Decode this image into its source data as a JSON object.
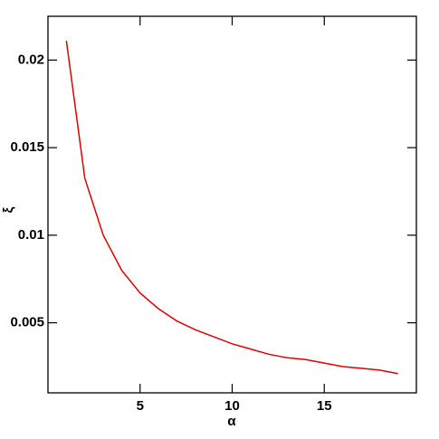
{
  "chart_data": {
    "type": "line",
    "x_label": "α",
    "y_label": "ξ",
    "x": [
      1,
      2,
      3,
      4,
      5,
      6,
      7,
      8,
      9,
      10,
      11,
      12,
      13,
      14,
      15,
      16,
      17,
      18,
      19
    ],
    "series": [
      {
        "color": "#e00000",
        "values": [
          0.0211,
          0.01325,
          0.01,
          0.008,
          0.0067,
          0.0058,
          0.0051,
          0.0046,
          0.0042,
          0.0038,
          0.0035,
          0.0032,
          0.003,
          0.0029,
          0.0027,
          0.0025,
          0.0024,
          0.0023,
          0.0021
        ]
      }
    ],
    "xlim": [
      0,
      20
    ],
    "xticks": [
      5,
      10,
      15
    ],
    "ylim": [
      0.001,
      0.0225
    ],
    "yticks": [
      0.005,
      0.01,
      0.015,
      0.02
    ]
  }
}
